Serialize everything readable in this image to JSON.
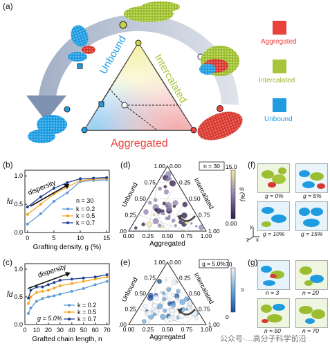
{
  "panels": {
    "a": "(a)",
    "b": "(b)",
    "c": "(c)",
    "d": "(d)",
    "e": "(e)",
    "f": "(f)",
    "g": "(g)"
  },
  "panel_a": {
    "triangle_labels": {
      "unbound": "Unbound",
      "intercalated": "Intercalated",
      "aggregated": "Aggregated"
    },
    "legend": [
      {
        "label": "Aggregated",
        "color": "#e8423b"
      },
      {
        "label": "Intercalated",
        "color": "#a6c53a"
      },
      {
        "label": "Unbound",
        "color": "#1f9be0"
      }
    ]
  },
  "chart_data": [
    {
      "id": "b",
      "type": "line",
      "xlabel": "Grafting density, g (%)",
      "ylabel": "f̄d",
      "x": [
        0,
        2.5,
        5,
        7.5,
        10,
        12.5,
        15
      ],
      "xticks": [
        "0",
        "5",
        "10",
        "15"
      ],
      "yticks": [
        "0.0",
        "0.5",
        "1.0"
      ],
      "xlim": [
        -0.5,
        15.5
      ],
      "ylim": [
        0,
        1.1
      ],
      "annotation": "dispersity",
      "legend_title": "n = 30",
      "series": [
        {
          "name": "k = 0.2",
          "color": "#5b9bd5",
          "values": [
            0.15,
            0.33,
            0.55,
            0.7,
            0.9,
            0.92,
            0.93
          ]
        },
        {
          "name": "k = 0.5",
          "color": "#f5a623",
          "values": [
            0.32,
            0.5,
            0.68,
            0.8,
            0.92,
            0.94,
            0.95
          ]
        },
        {
          "name": "k = 0.7",
          "color": "#1f3e8c",
          "values": [
            0.45,
            0.63,
            0.78,
            0.88,
            0.95,
            0.96,
            0.97
          ]
        }
      ]
    },
    {
      "id": "c",
      "type": "line",
      "xlabel": "Grafted chain length, n",
      "ylabel": "f̄d",
      "x": [
        3,
        5,
        10,
        15,
        20,
        25,
        30,
        40,
        50,
        60,
        70
      ],
      "xticks": [
        "0",
        "10",
        "20",
        "30",
        "40",
        "50",
        "60",
        "70"
      ],
      "yticks": [
        "0.0",
        "0.5",
        "1.0"
      ],
      "xlim": [
        0,
        72
      ],
      "ylim": [
        0,
        1.1
      ],
      "annotation": "dispersity",
      "inset_text": "g = 5.0%",
      "series": [
        {
          "name": "k = 0.2",
          "color": "#5b9bd5",
          "values": [
            0.2,
            0.3,
            0.42,
            0.47,
            0.5,
            0.52,
            0.55,
            0.6,
            0.65,
            0.72,
            0.78
          ]
        },
        {
          "name": "k = 0.5",
          "color": "#f5a623",
          "values": [
            0.38,
            0.5,
            0.58,
            0.6,
            0.62,
            0.66,
            0.7,
            0.74,
            0.78,
            0.82,
            0.86
          ]
        },
        {
          "name": "k = 0.7",
          "color": "#1f3e8c",
          "values": [
            0.48,
            0.62,
            0.68,
            0.68,
            0.72,
            0.76,
            0.8,
            0.82,
            0.84,
            0.86,
            0.9
          ]
        }
      ]
    },
    {
      "id": "d",
      "type": "scatter",
      "axis_labels": {
        "left": "Unbound",
        "right": "Intercalated",
        "bottom": "Aggregated"
      },
      "bottom_ticks": [
        "0.00",
        "0.25",
        "0.50",
        "0.75",
        "1.00"
      ],
      "left_ticks": [
        "1.00",
        "0.75",
        "0.50",
        "0.25",
        "0.00"
      ],
      "right_ticks": [
        "0.00",
        "0.25",
        "0.50",
        "0.75",
        "1.00"
      ],
      "box_label": "n = 30",
      "colorbar": {
        "label": "g (%)",
        "min_label": "0.00",
        "max_label": "15.0",
        "colors": [
          "#2e1a4a",
          "#8f7fb3",
          "#f2eba0"
        ]
      }
    },
    {
      "id": "e",
      "type": "scatter",
      "axis_labels": {
        "left": "Unbound",
        "right": "Intercalated",
        "bottom": "Aggregated"
      },
      "bottom_ticks": [
        "0.00",
        "0.25",
        "0.50",
        "0.75",
        "1.00"
      ],
      "left_ticks": [
        "1.00",
        "0.75",
        "0.50",
        "0.25",
        "0.00"
      ],
      "right_ticks": [
        "0.00",
        "0.25",
        "0.50",
        "0.75",
        "1.00"
      ],
      "box_label": "g = 5.0%",
      "colorbar": {
        "label": "n",
        "min_label": "0",
        "max_label": "70",
        "colors": [
          "#1a4f9c",
          "#6aa8dc",
          "#eef4fb"
        ]
      }
    }
  ],
  "panel_f": {
    "captions": [
      "g = 0%",
      "g = 5%",
      "g = 10%",
      "g = 15%"
    ],
    "axes": {
      "x": "x",
      "y": "y",
      "z": "z"
    }
  },
  "panel_g": {
    "captions": [
      "n = 3",
      "n = 20",
      "n = 50",
      "n = 70"
    ]
  },
  "watermark": "公众号·…高分子科学前沿"
}
